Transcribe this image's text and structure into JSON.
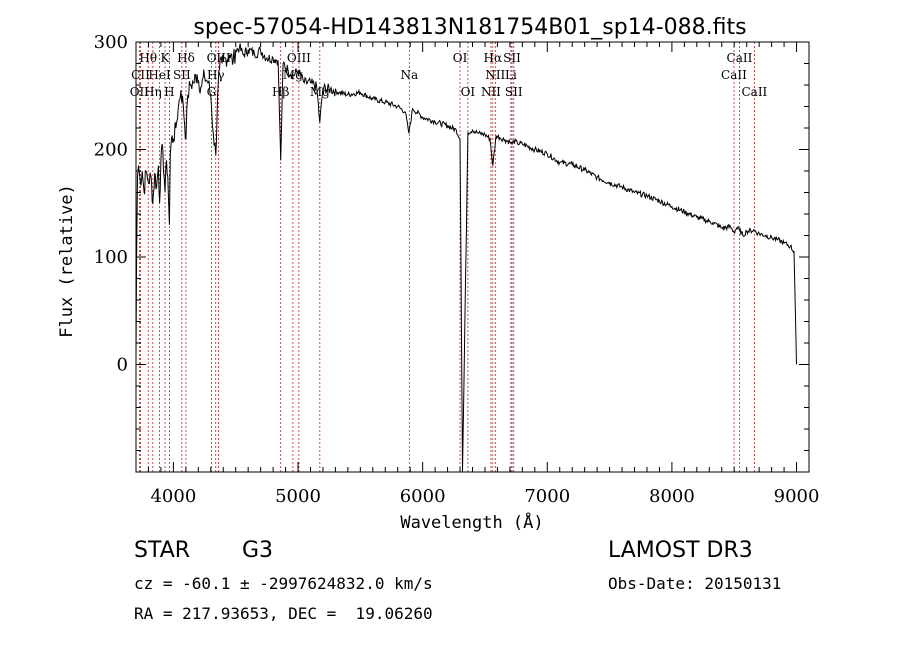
{
  "chart_data": {
    "type": "line",
    "title": "spec-57054-HD143813N181754B01_sp14-088.fits",
    "xlabel": "Wavelength (Å)",
    "ylabel": "Flux (relative)",
    "xlim": [
      3700,
      9100
    ],
    "ylim": [
      -100,
      300
    ],
    "xticks": [
      4000,
      5000,
      6000,
      7000,
      8000,
      9000
    ],
    "yticks": [
      0,
      100,
      200,
      300
    ],
    "series": [
      {
        "name": "flux",
        "x": [
          3700,
          3705,
          3712,
          3720,
          3735,
          3750,
          3765,
          3780,
          3800,
          3820,
          3835,
          3850,
          3865,
          3880,
          3889,
          3900,
          3915,
          3933,
          3945,
          3955,
          3968,
          3975,
          3985,
          4000,
          4020,
          4040,
          4060,
          4080,
          4101,
          4115,
          4135,
          4160,
          4190,
          4220,
          4250,
          4280,
          4300,
          4320,
          4340,
          4355,
          4370,
          4390,
          4420,
          4450,
          4480,
          4500,
          4530,
          4560,
          4600,
          4650,
          4700,
          4750,
          4800,
          4840,
          4861,
          4880,
          4920,
          4960,
          5000,
          5050,
          5100,
          5150,
          5175,
          5200,
          5260,
          5330,
          5400,
          5500,
          5600,
          5700,
          5800,
          5860,
          5890,
          5920,
          6000,
          6100,
          6200,
          6270,
          6300,
          6320,
          6363,
          6400,
          6450,
          6500,
          6540,
          6563,
          6590,
          6620,
          6660,
          6700,
          6717,
          6731,
          6760,
          6800,
          6900,
          7000,
          7100,
          7200,
          7300,
          7400,
          7500,
          7600,
          7700,
          7800,
          7900,
          8000,
          8100,
          8200,
          8300,
          8330,
          8400,
          8470,
          8498,
          8520,
          8542,
          8570,
          8600,
          8662,
          8690,
          8750,
          8800,
          8850,
          8900,
          8950,
          8980,
          9000
        ],
        "y": [
          5,
          100,
          175,
          185,
          170,
          180,
          160,
          180,
          170,
          175,
          150,
          178,
          165,
          185,
          150,
          190,
          200,
          160,
          190,
          175,
          130,
          195,
          210,
          210,
          220,
          240,
          255,
          240,
          210,
          250,
          260,
          262,
          270,
          258,
          268,
          262,
          250,
          215,
          195,
          250,
          275,
          280,
          285,
          288,
          282,
          292,
          295,
          288,
          293,
          289,
          292,
          285,
          285,
          283,
          190,
          280,
          274,
          269,
          273,
          262,
          262,
          258,
          225,
          257,
          256,
          253,
          251,
          253,
          247,
          244,
          240,
          235,
          215,
          238,
          230,
          226,
          222,
          218,
          210,
          -100,
          216,
          218,
          215,
          214,
          210,
          185,
          213,
          211,
          209,
          207,
          205,
          208,
          206,
          205,
          200,
          196,
          188,
          186,
          181,
          174,
          169,
          165,
          160,
          157,
          152,
          147,
          142,
          137,
          133,
          132,
          127,
          128,
          123,
          127,
          125,
          120,
          124,
          125,
          122,
          120,
          118,
          116,
          113,
          110,
          105,
          0
        ]
      }
    ],
    "line_labels": [
      {
        "label": "Hθ",
        "wave": 3798,
        "row": 1
      },
      {
        "label": "CII",
        "wave": 3736,
        "row": 2
      },
      {
        "label": "OII",
        "wave": 3727,
        "row": 3
      },
      {
        "label": "Hη",
        "wave": 3835,
        "row": 3
      },
      {
        "label": "HeI",
        "wave": 3889,
        "row": 2
      },
      {
        "label": "K",
        "wave": 3933,
        "row": 1
      },
      {
        "label": "SII",
        "wave": 4068,
        "row": 2
      },
      {
        "label": "H",
        "wave": 3968,
        "row": 3
      },
      {
        "label": "Hδ",
        "wave": 4101,
        "row": 1
      },
      {
        "label": "OIII",
        "wave": 4363,
        "row": 1
      },
      {
        "label": "Hγ",
        "wave": 4340,
        "row": 2
      },
      {
        "label": "G",
        "wave": 4305,
        "row": 3
      },
      {
        "label": "OIII",
        "wave": 5007,
        "row": 1
      },
      {
        "label": "Mg",
        "wave": 4959,
        "row": 2
      },
      {
        "label": "Hβ",
        "wave": 4861,
        "row": 3
      },
      {
        "label": "Mg",
        "wave": 5175,
        "row": 3
      },
      {
        "label": "Na",
        "wave": 5893,
        "row": 2
      },
      {
        "label": "OI",
        "wave": 6300,
        "row": 1
      },
      {
        "label": "OI",
        "wave": 6363,
        "row": 3
      },
      {
        "label": "Hα",
        "wave": 6563,
        "row": 1
      },
      {
        "label": "SII",
        "wave": 6717,
        "row": 1
      },
      {
        "label": "NII",
        "wave": 6583,
        "row": 2
      },
      {
        "label": "Li",
        "wave": 6708,
        "row": 2
      },
      {
        "label": "NII",
        "wave": 6548,
        "row": 3
      },
      {
        "label": "SII",
        "wave": 6731,
        "row": 3
      },
      {
        "label": "CaII",
        "wave": 8542,
        "row": 1
      },
      {
        "label": "CaII",
        "wave": 8498,
        "row": 2
      },
      {
        "label": "CaII",
        "wave": 8662,
        "row": 3
      }
    ],
    "marker_lines": [
      3727,
      3736,
      3798,
      3835,
      3889,
      3933,
      3968,
      4068,
      4101,
      4305,
      4340,
      4363,
      4861,
      4959,
      5007,
      5175,
      5893,
      6300,
      6363,
      6548,
      6563,
      6583,
      6708,
      6717,
      6731,
      8498,
      8542,
      8662
    ]
  },
  "info": {
    "class_label": "STAR",
    "subclass": "G3",
    "survey": "LAMOST DR3",
    "cz_line": "cz = -60.1 ± -2997624832.0 km/s",
    "obs_date": "Obs-Date: 20150131",
    "radec": "RA = 217.93653, DEC =  19.06260"
  },
  "colors": {
    "axis": "#000000",
    "spectrum": "#000000",
    "marker": "#b22222"
  }
}
